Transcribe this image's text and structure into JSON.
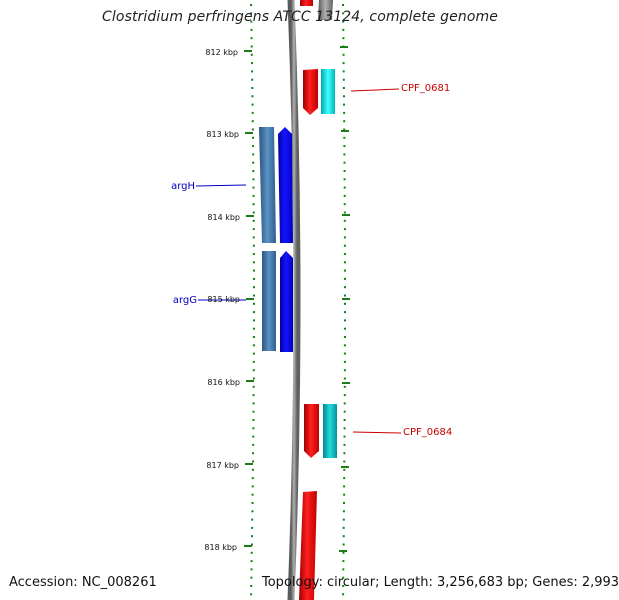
{
  "title": "Clostridium perfringens ATCC 13124, complete genome",
  "footer": {
    "accession": "Accession: NC_008261",
    "topology": "Topology: circular; Length: 3,256,683 bp; Genes: 2,993"
  },
  "colors": {
    "tick": "#1a7d1a",
    "backbone": "#808080",
    "left_label": "#0000c8",
    "right_label": "#c80000",
    "forward_gene": "#ff0000",
    "cyan_gene": "#00e8f0",
    "teal_gene": "#00c4cc",
    "blue_gene": "#0000ff",
    "steel_gene": "#3f78a8"
  },
  "ticks": [
    "812 kbp",
    "813 kbp",
    "814 kbp",
    "815 kbp",
    "816 kbp",
    "817 kbp",
    "818 kbp"
  ],
  "genes_left": [
    {
      "label": "argH"
    },
    {
      "label": "argG"
    }
  ],
  "genes_right": [
    {
      "label": "CPF_0681"
    },
    {
      "label": "CPF_0684"
    }
  ]
}
